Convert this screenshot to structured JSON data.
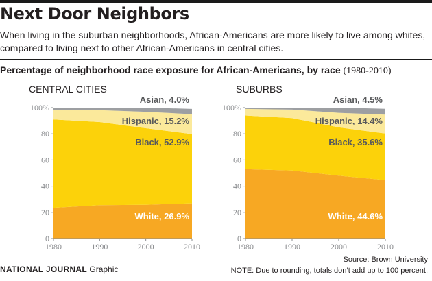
{
  "title": "Next Door Neighbors",
  "subtitle": "When living in the suburban neighborhoods, African-Americans are more likely to live among whites, compared to living next to other African-Americans in central cities.",
  "chart_title_bold": "Percentage of neighborhood race exposure for African-Americans, by race",
  "chart_title_years": "(1980-2010)",
  "colors": {
    "White": "#f7a823",
    "Black": "#fcd20a",
    "Hispanic": "#fbe99b",
    "Asian": "#9d9fa2",
    "axis": "#8a8c8f",
    "label_dark": "#58595b"
  },
  "chart_data": [
    {
      "type": "area",
      "stacked": true,
      "panel_title": "CENTRAL CITIES",
      "x": [
        "1980",
        "1990",
        "2000",
        "2010"
      ],
      "ylim": [
        0,
        100
      ],
      "y_ticks": [
        "0",
        "20",
        "40",
        "60",
        "80",
        "100%"
      ],
      "series": [
        {
          "name": "White",
          "values": [
            23.5,
            25.5,
            25.8,
            26.9
          ]
        },
        {
          "name": "Black",
          "values": [
            67.5,
            63.5,
            58.5,
            52.9
          ]
        },
        {
          "name": "Hispanic",
          "values": [
            7.0,
            9.0,
            12.5,
            15.2
          ]
        },
        {
          "name": "Asian",
          "values": [
            2.0,
            2.0,
            3.2,
            4.0
          ]
        }
      ],
      "annotations": [
        {
          "series": "Asian",
          "text": "Asian, 4.0%"
        },
        {
          "series": "Hispanic",
          "text": "Hispanic, 15.2%"
        },
        {
          "series": "Black",
          "text": "Black, 52.9%"
        },
        {
          "series": "White",
          "text": "White, 26.9%"
        }
      ]
    },
    {
      "type": "area",
      "stacked": true,
      "panel_title": "SUBURBS",
      "x": [
        "1980",
        "1990",
        "2000",
        "2010"
      ],
      "ylim": [
        0,
        100
      ],
      "y_ticks": [
        "0",
        "20",
        "40",
        "60",
        "80",
        "100%"
      ],
      "series": [
        {
          "name": "White",
          "values": [
            53.0,
            52.0,
            48.0,
            44.6
          ]
        },
        {
          "name": "Black",
          "values": [
            41.0,
            40.0,
            37.0,
            35.6
          ]
        },
        {
          "name": "Hispanic",
          "values": [
            5.0,
            6.5,
            11.0,
            14.4
          ]
        },
        {
          "name": "Asian",
          "values": [
            1.0,
            1.5,
            4.0,
            4.5
          ]
        }
      ],
      "annotations": [
        {
          "series": "Asian",
          "text": "Asian, 4.5%"
        },
        {
          "series": "Hispanic",
          "text": "Hispanic, 14.4%"
        },
        {
          "series": "Black",
          "text": "Black, 35.6%"
        },
        {
          "series": "White",
          "text": "White, 44.6%"
        }
      ]
    }
  ],
  "footer": {
    "brand": "NATIONAL JOURNAL",
    "brand_suffix": "Graphic",
    "source": "Source: Brown University",
    "note": "NOTE: Due to rounding, totals don’t add up to 100 percent."
  }
}
